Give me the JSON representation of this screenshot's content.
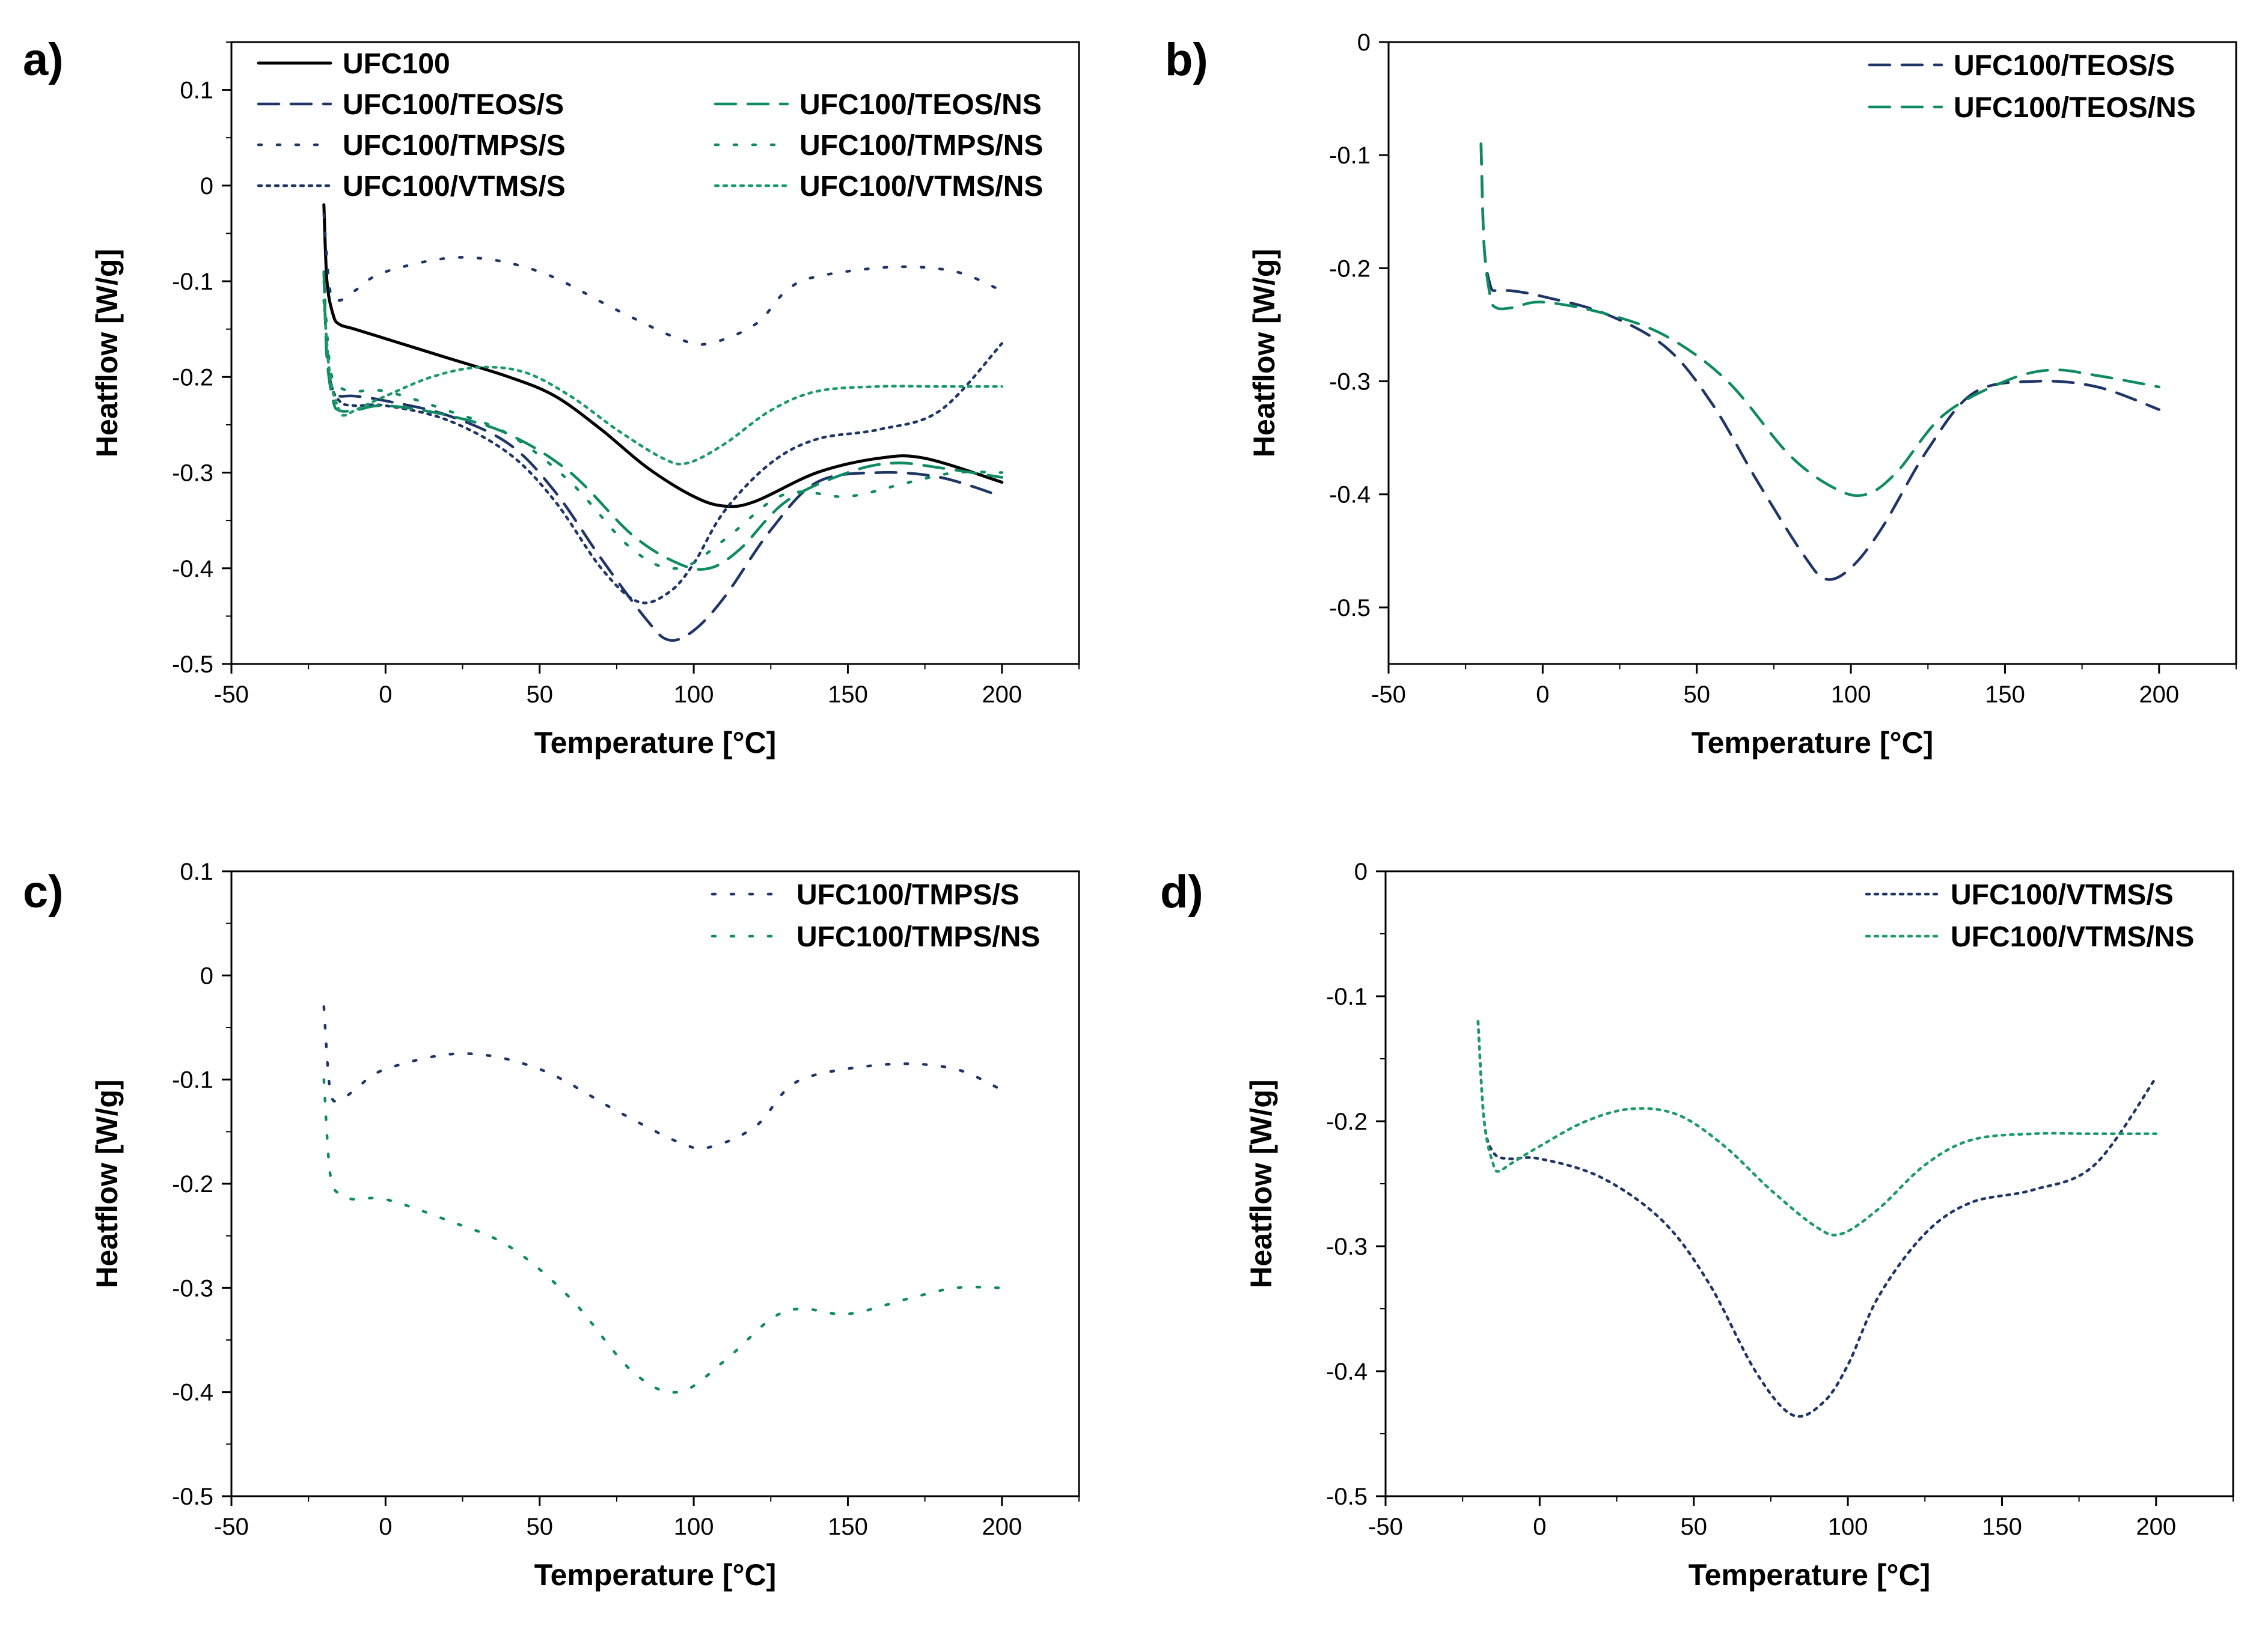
{
  "colors": {
    "black": "#000000",
    "navy": "#1f3566",
    "teal": "#0f8a62",
    "green": "#1c9a68"
  },
  "chart_data": [
    {
      "type": "line",
      "panel": "a)",
      "xlabel": "Temperature [°C]",
      "ylabel": "Heatflow [W/g]",
      "xlim": [
        -50,
        225
      ],
      "ylim": [
        -0.5,
        0.15
      ],
      "xticks": [
        -50,
        0,
        50,
        100,
        150,
        200
      ],
      "yticks": [
        -0.5,
        -0.4,
        -0.3,
        -0.2,
        -0.1,
        0,
        0.1
      ],
      "legend": "top, two columns",
      "series": [
        {
          "name": "UFC100",
          "style": "solid",
          "color": "#000000",
          "x": [
            -20,
            -19,
            -17,
            -15,
            -10,
            0,
            20,
            40,
            55,
            70,
            85,
            100,
            110,
            120,
            140,
            160,
            175,
            200
          ],
          "y": [
            -0.02,
            -0.1,
            -0.135,
            -0.145,
            -0.15,
            -0.16,
            -0.18,
            -0.2,
            -0.22,
            -0.255,
            -0.295,
            -0.325,
            -0.335,
            -0.33,
            -0.3,
            -0.285,
            -0.285,
            -0.31
          ]
        },
        {
          "name": "UFC100/TEOS/S",
          "style": "dashed",
          "color": "#1f3566",
          "x": [
            -20,
            -19,
            -17,
            -15,
            -10,
            0,
            20,
            40,
            55,
            70,
            85,
            92,
            100,
            110,
            125,
            140,
            160,
            180,
            200
          ],
          "y": [
            -0.09,
            -0.18,
            -0.215,
            -0.22,
            -0.22,
            -0.225,
            -0.24,
            -0.27,
            -0.32,
            -0.39,
            -0.455,
            -0.475,
            -0.465,
            -0.43,
            -0.36,
            -0.31,
            -0.3,
            -0.305,
            -0.325
          ]
        },
        {
          "name": "UFC100/TMPS/S",
          "style": "sparse-dotted",
          "color": "#1f3566",
          "x": [
            -20,
            -18,
            -15,
            -10,
            0,
            25,
            50,
            75,
            95,
            105,
            120,
            130,
            140,
            165,
            185,
            200
          ],
          "y": [
            -0.03,
            -0.11,
            -0.12,
            -0.11,
            -0.09,
            -0.075,
            -0.09,
            -0.13,
            -0.16,
            -0.165,
            -0.145,
            -0.11,
            -0.095,
            -0.085,
            -0.09,
            -0.11
          ]
        },
        {
          "name": "UFC100/VTMS/S",
          "style": "dotted",
          "color": "#1f3566",
          "x": [
            -20,
            -18,
            -15,
            -10,
            0,
            20,
            40,
            55,
            70,
            82,
            92,
            100,
            110,
            125,
            140,
            160,
            180,
            200
          ],
          "y": [
            -0.12,
            -0.2,
            -0.225,
            -0.23,
            -0.23,
            -0.245,
            -0.28,
            -0.33,
            -0.4,
            -0.435,
            -0.425,
            -0.395,
            -0.34,
            -0.29,
            -0.265,
            -0.255,
            -0.235,
            -0.165
          ]
        },
        {
          "name": "UFC100/TEOS/NS",
          "style": "dashed",
          "color": "#0f8a62",
          "x": [
            -20,
            -19,
            -17,
            -15,
            -10,
            0,
            20,
            40,
            60,
            80,
            95,
            105,
            115,
            130,
            150,
            165,
            180,
            200
          ],
          "y": [
            -0.09,
            -0.18,
            -0.225,
            -0.235,
            -0.235,
            -0.23,
            -0.24,
            -0.26,
            -0.3,
            -0.365,
            -0.395,
            -0.4,
            -0.38,
            -0.33,
            -0.3,
            -0.29,
            -0.295,
            -0.305
          ]
        },
        {
          "name": "UFC100/TMPS/NS",
          "style": "sparse-dotted",
          "color": "#0f8a62",
          "x": [
            -20,
            -18,
            -15,
            -10,
            0,
            20,
            40,
            60,
            80,
            95,
            110,
            125,
            135,
            150,
            170,
            185,
            200
          ],
          "y": [
            -0.1,
            -0.19,
            -0.21,
            -0.215,
            -0.215,
            -0.235,
            -0.26,
            -0.31,
            -0.38,
            -0.4,
            -0.37,
            -0.33,
            -0.32,
            -0.325,
            -0.31,
            -0.3,
            -0.3
          ]
        },
        {
          "name": "UFC100/VTMS/NS",
          "style": "dotted",
          "color": "#1c9a68",
          "x": [
            -20,
            -18,
            -15,
            -13,
            -10,
            0,
            15,
            30,
            45,
            60,
            75,
            90,
            98,
            110,
            125,
            140,
            160,
            180,
            200
          ],
          "y": [
            -0.12,
            -0.2,
            -0.235,
            -0.24,
            -0.235,
            -0.22,
            -0.2,
            -0.19,
            -0.195,
            -0.22,
            -0.255,
            -0.285,
            -0.29,
            -0.27,
            -0.235,
            -0.215,
            -0.21,
            -0.21,
            -0.21
          ]
        }
      ]
    },
    {
      "type": "line",
      "panel": "b)",
      "xlabel": "Temperature [°C]",
      "ylabel": "Heatflow [W/g]",
      "xlim": [
        -50,
        225
      ],
      "ylim": [
        -0.55,
        0
      ],
      "xticks": [
        -50,
        0,
        50,
        100,
        150,
        200
      ],
      "yticks": [
        -0.5,
        -0.4,
        -0.3,
        -0.2,
        -0.1,
        0
      ],
      "legend": "top-right",
      "series": [
        {
          "name": "UFC100/TEOS/S",
          "style": "dashed",
          "color": "#1f3566",
          "x": [
            -20,
            -19,
            -17,
            -15,
            -10,
            0,
            20,
            40,
            55,
            70,
            85,
            92,
            100,
            110,
            125,
            140,
            160,
            180,
            200
          ],
          "y": [
            -0.09,
            -0.18,
            -0.215,
            -0.22,
            -0.22,
            -0.225,
            -0.24,
            -0.27,
            -0.32,
            -0.39,
            -0.455,
            -0.475,
            -0.465,
            -0.43,
            -0.36,
            -0.31,
            -0.3,
            -0.305,
            -0.325
          ]
        },
        {
          "name": "UFC100/TEOS/NS",
          "style": "dashed",
          "color": "#0f8a62",
          "x": [
            -20,
            -19,
            -17,
            -15,
            -10,
            0,
            20,
            40,
            60,
            80,
            95,
            105,
            115,
            130,
            150,
            165,
            180,
            200
          ],
          "y": [
            -0.09,
            -0.18,
            -0.225,
            -0.235,
            -0.235,
            -0.23,
            -0.24,
            -0.26,
            -0.3,
            -0.365,
            -0.395,
            -0.4,
            -0.38,
            -0.33,
            -0.3,
            -0.29,
            -0.295,
            -0.305
          ]
        }
      ]
    },
    {
      "type": "line",
      "panel": "c)",
      "xlabel": "Temperature [°C]",
      "ylabel": "Heatflow [W/g]",
      "xlim": [
        -50,
        225
      ],
      "ylim": [
        -0.5,
        0.1
      ],
      "xticks": [
        -50,
        0,
        50,
        100,
        150,
        200
      ],
      "yticks": [
        -0.5,
        -0.4,
        -0.3,
        -0.2,
        -0.1,
        0,
        0.1
      ],
      "legend": "top-right",
      "series": [
        {
          "name": "UFC100/TMPS/S",
          "style": "sparse-dotted",
          "color": "#1f3566",
          "x": [
            -20,
            -18,
            -15,
            -10,
            0,
            25,
            50,
            75,
            95,
            105,
            120,
            130,
            140,
            165,
            185,
            200
          ],
          "y": [
            -0.03,
            -0.11,
            -0.12,
            -0.11,
            -0.09,
            -0.075,
            -0.09,
            -0.13,
            -0.16,
            -0.165,
            -0.145,
            -0.11,
            -0.095,
            -0.085,
            -0.09,
            -0.11
          ]
        },
        {
          "name": "UFC100/TMPS/NS",
          "style": "sparse-dotted",
          "color": "#0f8a62",
          "x": [
            -20,
            -18,
            -15,
            -10,
            0,
            20,
            40,
            60,
            80,
            95,
            110,
            125,
            135,
            150,
            170,
            185,
            200
          ],
          "y": [
            -0.1,
            -0.19,
            -0.21,
            -0.215,
            -0.215,
            -0.235,
            -0.26,
            -0.31,
            -0.38,
            -0.4,
            -0.37,
            -0.33,
            -0.32,
            -0.325,
            -0.31,
            -0.3,
            -0.3
          ]
        }
      ]
    },
    {
      "type": "line",
      "panel": "d)",
      "xlabel": "Temperature [°C]",
      "ylabel": "Heatflow [W/g]",
      "xlim": [
        -50,
        225
      ],
      "ylim": [
        -0.5,
        0
      ],
      "xticks": [
        -50,
        0,
        50,
        100,
        150,
        200
      ],
      "yticks": [
        -0.5,
        -0.4,
        -0.3,
        -0.2,
        -0.1,
        0
      ],
      "legend": "top-right",
      "series": [
        {
          "name": "UFC100/VTMS/S",
          "style": "dotted",
          "color": "#1f3566",
          "x": [
            -20,
            -18,
            -15,
            -10,
            0,
            20,
            40,
            55,
            70,
            82,
            92,
            100,
            110,
            125,
            140,
            160,
            180,
            200
          ],
          "y": [
            -0.12,
            -0.2,
            -0.225,
            -0.23,
            -0.23,
            -0.245,
            -0.28,
            -0.33,
            -0.4,
            -0.435,
            -0.425,
            -0.395,
            -0.34,
            -0.29,
            -0.265,
            -0.255,
            -0.235,
            -0.165
          ]
        },
        {
          "name": "UFC100/VTMS/NS",
          "style": "dotted",
          "color": "#1c9a68",
          "x": [
            -20,
            -18,
            -15,
            -13,
            -10,
            0,
            15,
            30,
            45,
            60,
            75,
            90,
            98,
            110,
            125,
            140,
            160,
            180,
            200
          ],
          "y": [
            -0.12,
            -0.2,
            -0.235,
            -0.24,
            -0.235,
            -0.22,
            -0.2,
            -0.19,
            -0.195,
            -0.22,
            -0.255,
            -0.285,
            -0.29,
            -0.27,
            -0.235,
            -0.215,
            -0.21,
            -0.21,
            -0.21
          ]
        }
      ]
    }
  ]
}
